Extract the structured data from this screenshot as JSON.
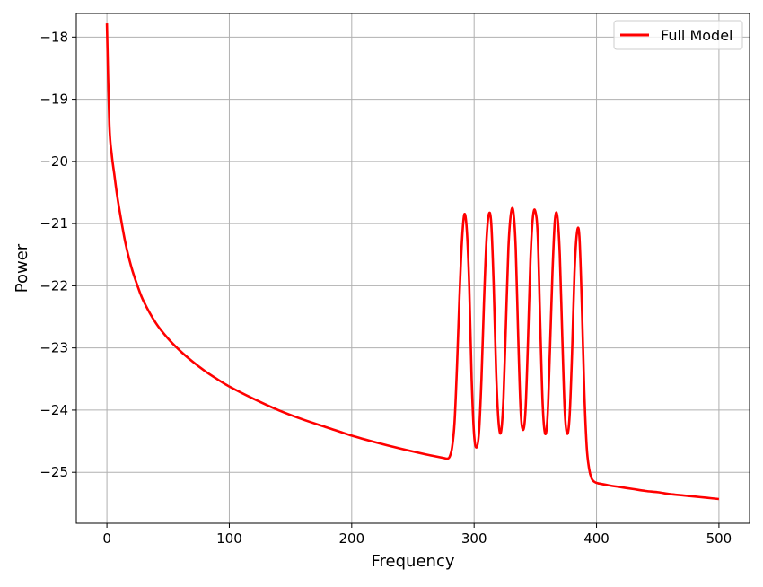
{
  "chart_data": {
    "type": "line",
    "xlabel": "Frequency",
    "ylabel": "Power",
    "xlim": [
      -25,
      525
    ],
    "ylim": [
      -25.82,
      -17.62
    ],
    "xticks": [
      0,
      100,
      200,
      300,
      400,
      500
    ],
    "yticks": [
      -18,
      -19,
      -20,
      -21,
      -22,
      -23,
      -24,
      -25
    ],
    "xtick_labels": [
      "0",
      "100",
      "200",
      "300",
      "400",
      "500"
    ],
    "ytick_labels": [
      "−18",
      "−19",
      "−20",
      "−21",
      "−22",
      "−23",
      "−24",
      "−25"
    ],
    "grid": true,
    "legend": {
      "position": "top-right",
      "entries": [
        {
          "label": "Full Model",
          "color": "#ff0000"
        }
      ]
    },
    "series": [
      {
        "name": "Full Model",
        "color": "#ff0000",
        "x": [
          0,
          2,
          4,
          6,
          8,
          10,
          15,
          20,
          25,
          30,
          40,
          50,
          60,
          70,
          80,
          90,
          100,
          120,
          140,
          160,
          180,
          200,
          220,
          240,
          260,
          270,
          275,
          278,
          280,
          282,
          284,
          286,
          288,
          290,
          292,
          294,
          296,
          298,
          300,
          302,
          304,
          306,
          308,
          310,
          312,
          314,
          316,
          318,
          320,
          322,
          324,
          326,
          328,
          330,
          332,
          334,
          336,
          338,
          340,
          342,
          344,
          346,
          348,
          350,
          352,
          354,
          356,
          358,
          360,
          362,
          364,
          366,
          368,
          370,
          372,
          374,
          376,
          378,
          380,
          382,
          384,
          386,
          388,
          390,
          392,
          394,
          396,
          398,
          400,
          402,
          410,
          420,
          430,
          440,
          450,
          460,
          470,
          480,
          490,
          500
        ],
        "y": [
          -17.78,
          -19.4,
          -19.9,
          -20.2,
          -20.5,
          -20.75,
          -21.3,
          -21.7,
          -22.0,
          -22.25,
          -22.6,
          -22.85,
          -23.05,
          -23.22,
          -23.37,
          -23.5,
          -23.62,
          -23.82,
          -24.0,
          -24.15,
          -24.28,
          -24.41,
          -24.52,
          -24.62,
          -24.71,
          -24.75,
          -24.77,
          -24.78,
          -24.75,
          -24.6,
          -24.2,
          -23.3,
          -22.2,
          -21.3,
          -20.85,
          -21.1,
          -22.0,
          -23.5,
          -24.4,
          -24.6,
          -24.35,
          -23.5,
          -22.3,
          -21.3,
          -20.85,
          -21.0,
          -22.0,
          -23.4,
          -24.2,
          -24.35,
          -23.8,
          -22.6,
          -21.4,
          -20.85,
          -20.8,
          -21.4,
          -22.8,
          -24.0,
          -24.32,
          -24.0,
          -22.9,
          -21.6,
          -20.9,
          -20.8,
          -21.2,
          -22.6,
          -23.9,
          -24.38,
          -24.1,
          -23.0,
          -21.8,
          -20.95,
          -20.88,
          -21.5,
          -22.8,
          -24.0,
          -24.38,
          -24.1,
          -23.1,
          -21.8,
          -21.15,
          -21.2,
          -22.3,
          -23.7,
          -24.6,
          -24.95,
          -25.1,
          -25.15,
          -25.17,
          -25.18,
          -25.21,
          -25.24,
          -25.27,
          -25.3,
          -25.32,
          -25.35,
          -25.37,
          -25.39,
          -25.41,
          -25.43
        ]
      }
    ]
  }
}
